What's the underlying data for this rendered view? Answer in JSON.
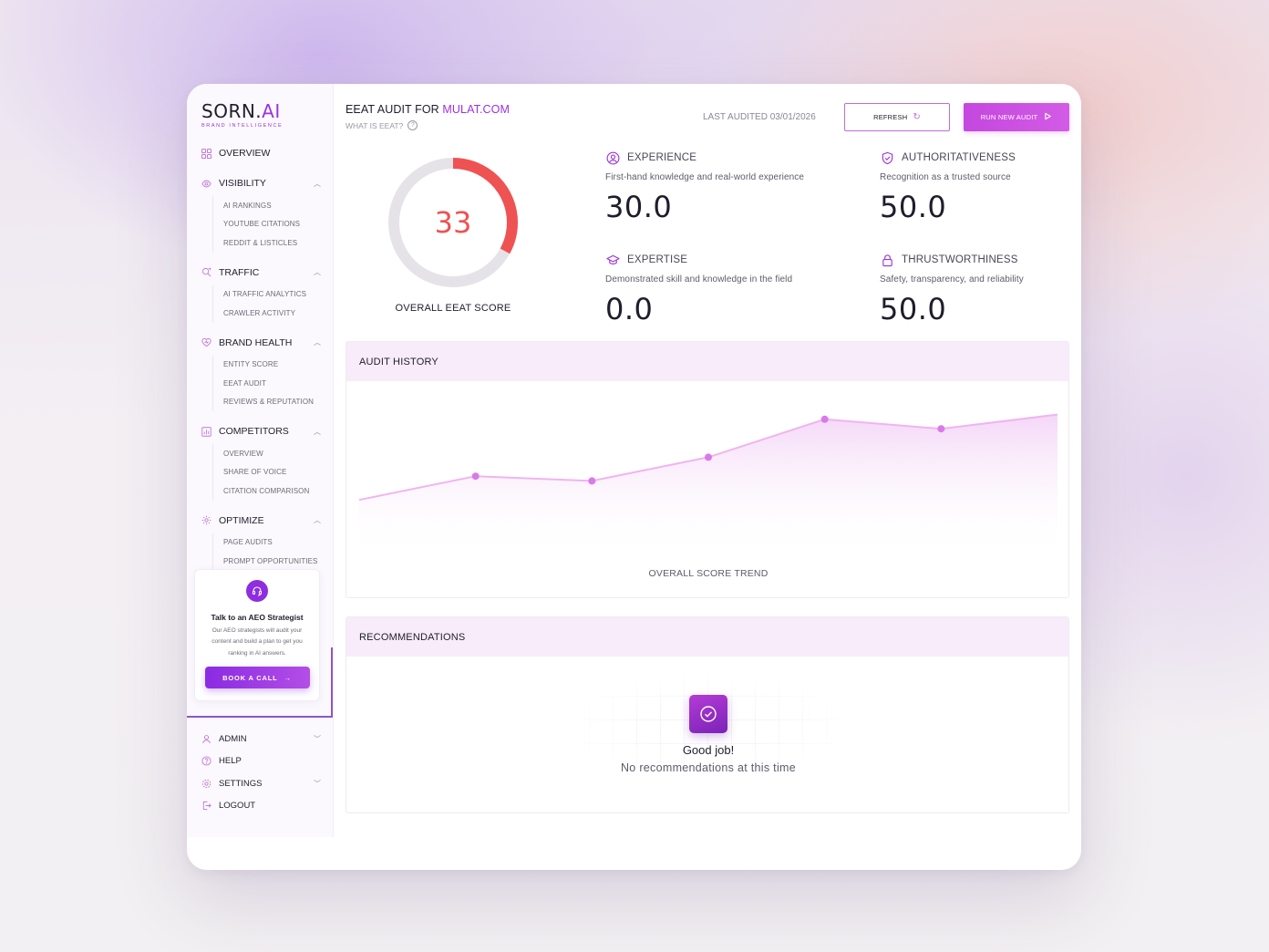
{
  "brand": {
    "name_main": "SORN.",
    "name_accent": "AI",
    "tagline": "BRAND INTELLIGENCE"
  },
  "sidebar": {
    "overview": "OVERVIEW",
    "groups": [
      {
        "label": "VISIBILITY",
        "icon": "eye-icon",
        "items": [
          "AI RANKINGS",
          "YOUTUBE CITATIONS",
          "REDDIT & LISTICLES"
        ]
      },
      {
        "label": "TRAFFIC",
        "icon": "traffic-icon",
        "items": [
          "AI TRAFFIC ANALYTICS",
          "CRAWLER ACTIVITY"
        ]
      },
      {
        "label": "BRAND HEALTH",
        "icon": "heart-icon",
        "items": [
          "ENTITY SCORE",
          "EEAT AUDIT",
          "REVIEWS & REPUTATION"
        ]
      },
      {
        "label": "COMPETITORS",
        "icon": "bar-chart-icon",
        "items": [
          "OVERVIEW",
          "SHARE OF VOICE",
          "CITATION COMPARISON"
        ]
      },
      {
        "label": "OPTIMIZE",
        "icon": "gear-icon",
        "items": [
          "PAGE AUDITS",
          "PROMPT OPPORTUNITIES"
        ]
      }
    ],
    "cta": {
      "title": "Talk to an AEO Strategist",
      "body": "Our AEO strategists will audit your content and build a plan to get you ranking in AI answers.",
      "button": "BOOK A CALL"
    },
    "bottom": {
      "admin": "ADMIN",
      "help": "HELP",
      "settings": "SETTINGS",
      "logout": "LOGOUT"
    }
  },
  "header": {
    "title_prefix": "EEAT AUDIT FOR",
    "domain": "MULAT.COM",
    "what_is": "WHAT IS EEAT?",
    "last_audited": "LAST AUDITED 03/01/2026",
    "refresh": "REFRESH",
    "run_new_audit": "RUN NEW AUDIT"
  },
  "score": {
    "value": "33",
    "value_number": 33,
    "max": 100,
    "label": "OVERALL EEAT SCORE",
    "accent": "#ef5252"
  },
  "metrics": {
    "experience": {
      "title": "EXPERIENCE",
      "desc": "First-hand knowledge and real-world experience",
      "value": "30.0"
    },
    "authoritativeness": {
      "title": "AUTHORITATIVENESS",
      "desc": "Recognition as a trusted source",
      "value": "50.0"
    },
    "expertise": {
      "title": "EXPERTISE",
      "desc": "Demonstrated skill and knowledge in the field",
      "value": "0.0"
    },
    "trustworthiness": {
      "title": "THRUSTWORTHINESS",
      "desc": "Safety, transparency, and reliability",
      "value": "50.0"
    }
  },
  "history": {
    "title": "AUDIT HISTORY",
    "trend_label": "OVERALL SCORE TREND"
  },
  "recommendations": {
    "title": "RECOMMENDATIONS",
    "empty_title": "Good job!",
    "empty_sub": "No recommendations at this time"
  },
  "chart_data": {
    "type": "area",
    "title": "OVERALL SCORE TREND",
    "x": [
      0,
      1,
      2,
      3,
      4,
      5,
      6
    ],
    "values": [
      24,
      29,
      28,
      33,
      41,
      39,
      42
    ],
    "marker_indices": [
      1,
      2,
      3,
      4,
      5
    ],
    "ylim": [
      0,
      100
    ],
    "grid": false,
    "colors": {
      "line": "#f0b4f0",
      "marker": "#d97ae8",
      "fill_top": "#f3d2f6",
      "fill_bottom": "#ffffff"
    }
  },
  "colors": {
    "accent": "#9b32e0",
    "pink": "#c447df",
    "score_red": "#ef5252",
    "track": "#e6e3e8"
  }
}
